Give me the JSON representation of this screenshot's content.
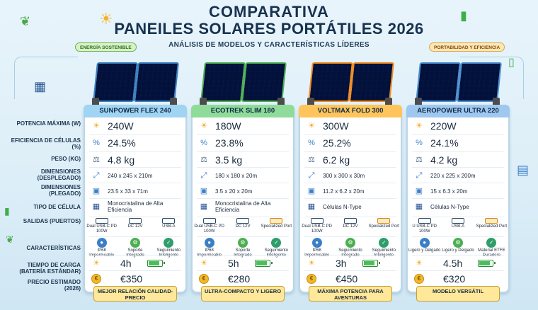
{
  "header": {
    "title_line1": "COMPARATIVA",
    "title_line2": "PANEILES SOLARES PORTÁTILES 2026",
    "subtitle": "ANÁLISIS DE MODELOS Y CARACTERÍSTICAS LÍDERES",
    "badge_left": "ENERGÍA SOSTENIBLE",
    "badge_right": "PORTABILIDAD Y EFICIENCIA"
  },
  "row_labels": [
    "POTENCIA MÁXIMA (W)",
    "EFICIENCIA DE CÉLULAS (%)",
    "PESO (KG)",
    "DIMENSIONES (DESPLEGADO)",
    "DIMENSIONES (PLEGADO)",
    "TIPO DE CÉLULA",
    "SALIDAS (PUERTOS)",
    "CARACTERÍSTICAS",
    "TIEMPO DE CARGA (BATERÍA ESTÁNDAR)",
    "PRECIO ESTIMADO (2026)"
  ],
  "colors": {
    "card0": "#9fd4f2",
    "card1": "#8fdc9a",
    "card2": "#ffc55c",
    "card3": "#9fc8f0"
  },
  "products": [
    {
      "name": "SUNPOWER FLEX 240",
      "power": "240W",
      "efficiency": "24.5%",
      "weight": "4.8 kg",
      "dim_open": "240 x 245 x 210m",
      "dim_folded": "23.5 x 33 x 71m",
      "cell_type": "Monocristalina de Alta Eficiencia",
      "ports": [
        "Dual USB-C PD 100W",
        "DC 12V",
        "USB-A"
      ],
      "features": [
        "IP68 Impermeable",
        "Soporte Integrado",
        "Seguimiento Inteligente"
      ],
      "charge_time": "4h",
      "price": "€350",
      "tag": "MEJOR RELACIÓN CALIDAD-PRECIO"
    },
    {
      "name": "ECOTREK SLIM 180",
      "power": "180W",
      "efficiency": "23.8%",
      "weight": "3.5 kg",
      "dim_open": "180 x 180 x 20m",
      "dim_folded": "3.5 x 20 x 20m",
      "cell_type": "Monocristalina de Alta Eficiencia",
      "ports": [
        "Dual USB-C PD 100W",
        "DC 12V",
        "Specialized Port"
      ],
      "features": [
        "IP68 Impermeable",
        "Soporte Integrado",
        "Seguimiento Inteligente"
      ],
      "charge_time": "5h",
      "price": "€280",
      "tag": "ULTRA-COMPACTO Y LIGERO"
    },
    {
      "name": "VOLTMAX FOLD 300",
      "power": "300W",
      "efficiency": "25.2%",
      "weight": "6.2 kg",
      "dim_open": "300 x 300 x 30m",
      "dim_folded": "11.2 x 6.2 x 20m",
      "cell_type": "Células N-Type",
      "ports": [
        "Dual USB-C PD 100W",
        "DC 12V",
        "Specialized Port"
      ],
      "features": [
        "IP68 Impermeable",
        "Seguimiento Integrado",
        "Seguimiento Inteligente"
      ],
      "charge_time": "3h",
      "price": "€450",
      "tag": "MÁXIMA POTENCIA PARA AVENTURAS"
    },
    {
      "name": "AEROPOWER ULTRA 220",
      "power": "220W",
      "efficiency": "24.1%",
      "weight": "4.2 kg",
      "dim_open": "220 x 225 x 200m",
      "dim_folded": "15 x 6.3 x 20m",
      "cell_type": "Células N-Type",
      "ports": [
        "U USB-C PD 100W",
        "USB-A",
        "Specialized Port"
      ],
      "features": [
        "Ligero y Delgado",
        "Ligero y Delgado",
        "Material ETFE Duradero"
      ],
      "charge_time": "4.5h",
      "price": "€320",
      "tag": "MODELO VERSÁTIL"
    }
  ]
}
